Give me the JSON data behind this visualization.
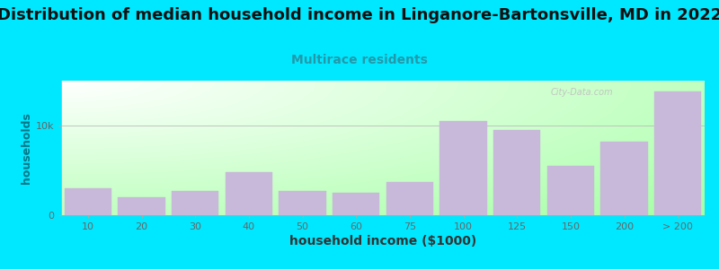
{
  "title": "Distribution of median household income in Linganore-Bartonsville, MD in 2022",
  "subtitle": "Multirace residents",
  "xlabel": "household income ($1000)",
  "ylabel": "households",
  "categories": [
    "10",
    "20",
    "30",
    "40",
    "50",
    "60",
    "75",
    "100",
    "125",
    "150",
    "200",
    "> 200"
  ],
  "values": [
    3000,
    2000,
    2700,
    4800,
    2700,
    2500,
    3700,
    10500,
    9500,
    5500,
    8200,
    13800
  ],
  "bar_color": "#c8b8d9",
  "background_outer": "#00e8ff",
  "background_inner_left": "#d8f0d8",
  "background_inner_right": "#f8f8ff",
  "title_fontsize": 13,
  "subtitle_fontsize": 10,
  "subtitle_color": "#2299aa",
  "ylabel_color": "#007788",
  "xlabel_color": "#333333",
  "tick_color": "#666666",
  "grid_color": "#bbbbbb",
  "ylim_max": 15000,
  "ytick_vals": [
    0,
    10000
  ],
  "ytick_labels": [
    "0",
    "10k"
  ],
  "watermark": "City-Data.com"
}
